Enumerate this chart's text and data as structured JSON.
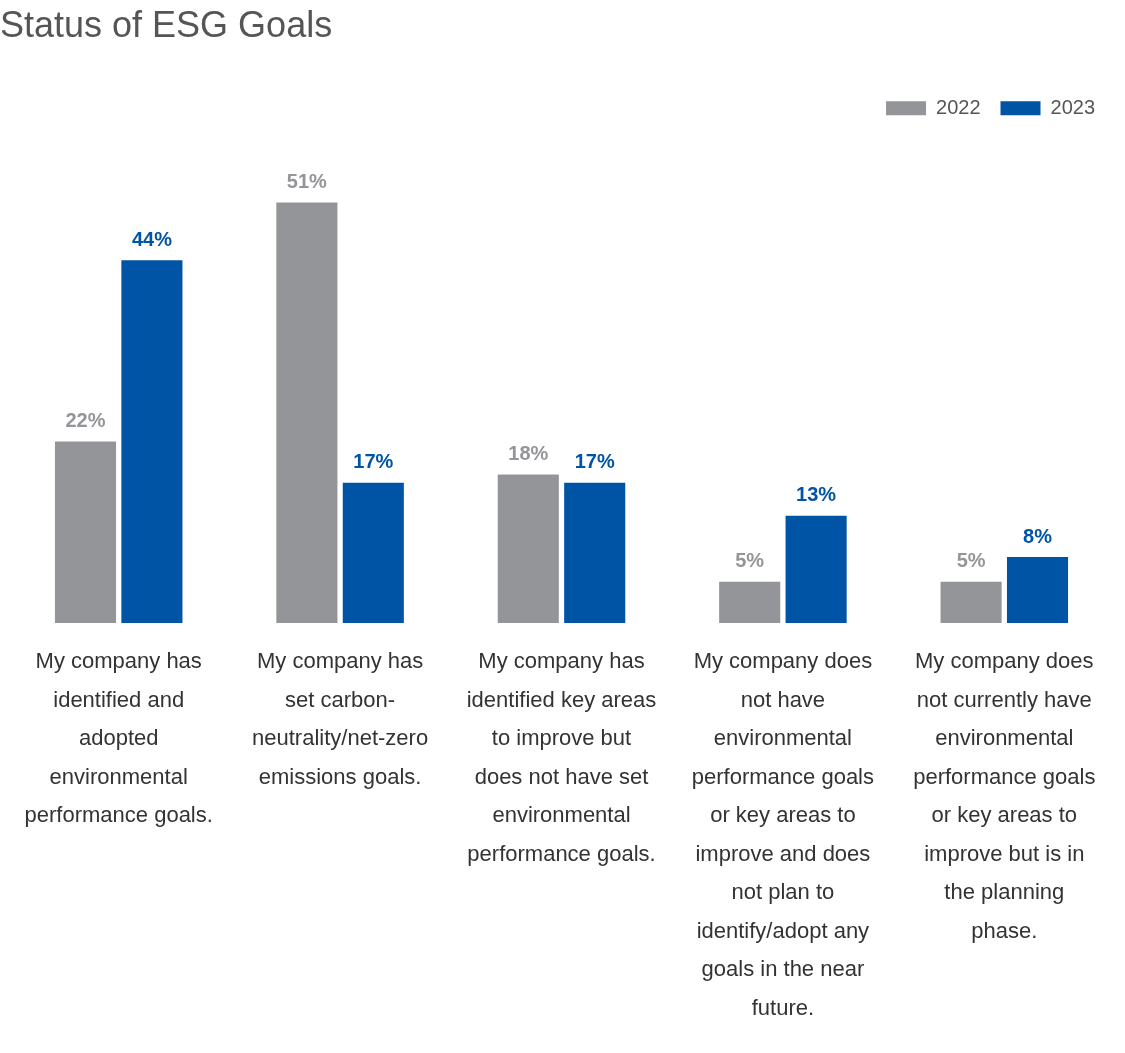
{
  "chart_data": {
    "type": "bar",
    "title": "Status of ESG Goals",
    "categories": [
      "My company has identified and adopted environmental performance goals.",
      "My company has set carbon-neutrality/net-zero emissions goals.",
      "My company has identified key areas to improve but does not have set environmental performance goals.",
      "My company does not have environmental performance goals or key areas to improve and does not plan to identify/adopt any goals in the near future.",
      "My company does not currently have environmental performance goals or key areas to improve but is in the planning phase."
    ],
    "series": [
      {
        "name": "2022",
        "color": "#939598",
        "values": [
          22,
          51,
          18,
          5,
          5
        ],
        "value_labels": [
          "22%",
          "51%",
          "18%",
          "5%",
          "5%"
        ]
      },
      {
        "name": "2023",
        "color": "#0054a6",
        "values": [
          44,
          17,
          17,
          13,
          8
        ],
        "value_labels": [
          "44%",
          "17%",
          "17%",
          "13%",
          "8%"
        ]
      }
    ],
    "legend": "top right",
    "grid": false
  }
}
